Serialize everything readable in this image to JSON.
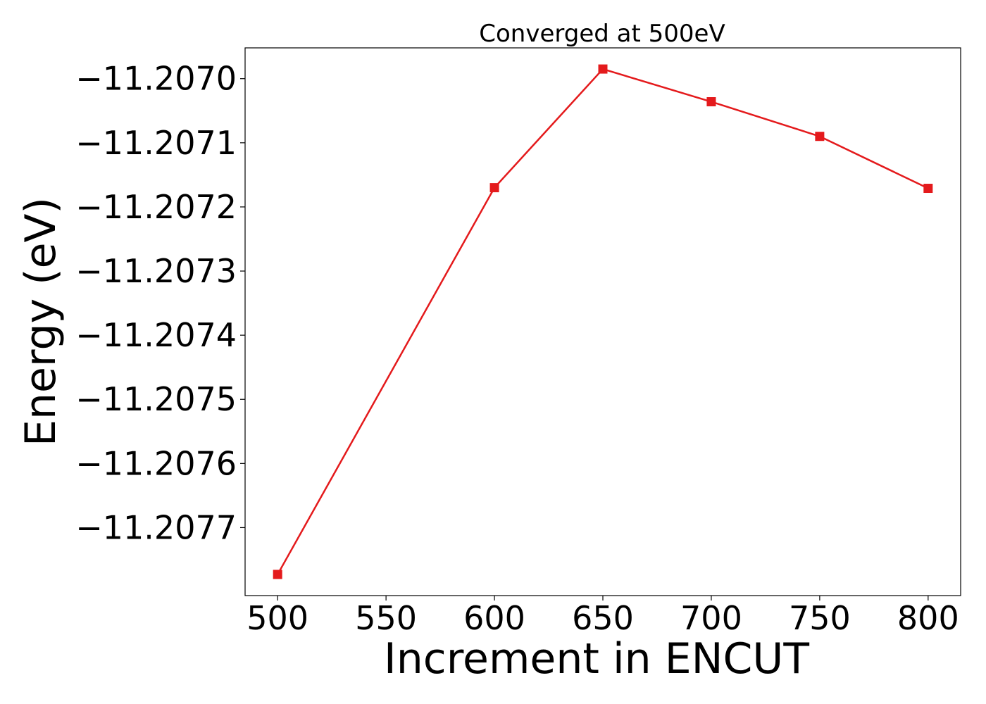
{
  "chart_data": {
    "type": "line",
    "title": "Converged at 500eV",
    "xlabel": "Increment in ENCUT",
    "ylabel": "Energy (eV)",
    "x": [
      500,
      600,
      650,
      700,
      750,
      800
    ],
    "series": [
      {
        "values": [
          -11.207773,
          -11.20717,
          -11.206985,
          -11.207036,
          -11.20709,
          -11.207171
        ],
        "color": "#e41a1c",
        "marker": "square"
      }
    ],
    "xticks": [
      500,
      550,
      600,
      650,
      700,
      750,
      800
    ],
    "xtick_labels": [
      "500",
      "550",
      "600",
      "650",
      "700",
      "750",
      "800"
    ],
    "yticks": [
      -11.207,
      -11.2071,
      -11.2072,
      -11.2073,
      -11.2074,
      -11.2075,
      -11.2076,
      -11.2077
    ],
    "ytick_labels": [
      "−11.2070",
      "−11.2071",
      "−11.2072",
      "−11.2073",
      "−11.2074",
      "−11.2075",
      "−11.2076",
      "−11.2077"
    ],
    "xlim": [
      485,
      815
    ],
    "ylim": [
      -11.207806,
      -11.206952
    ],
    "grid": false,
    "legend": false
  }
}
